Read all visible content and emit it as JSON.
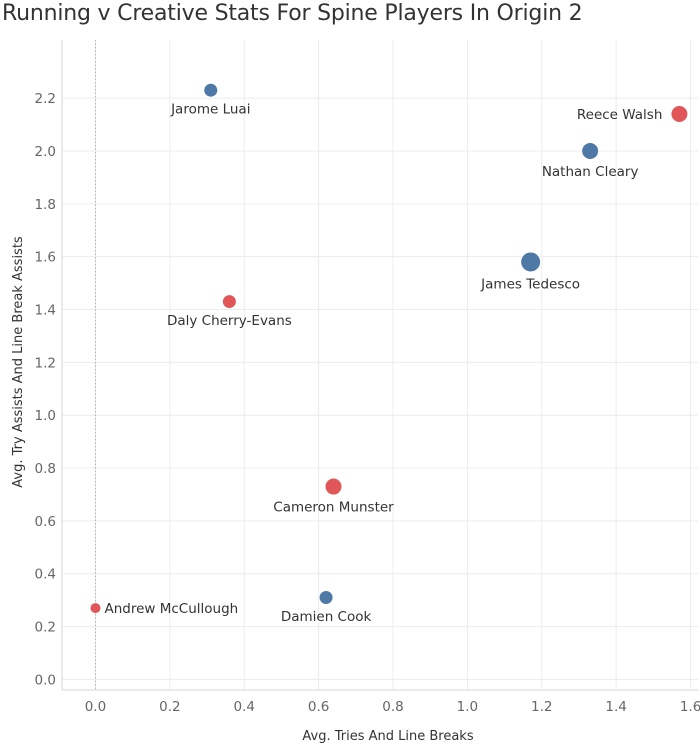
{
  "chart_data": {
    "type": "scatter",
    "title": "Running v Creative Stats For Spine Players In Origin 2",
    "xlabel": "Avg. Tries And Line Breaks",
    "ylabel": "Avg. Try Assists And Line Break Assists",
    "xlim": [
      -0.09,
      1.62
    ],
    "ylim": [
      -0.04,
      2.42
    ],
    "xticks": [
      0.0,
      0.2,
      0.4,
      0.6,
      0.8,
      1.0,
      1.2,
      1.4,
      1.6
    ],
    "yticks": [
      0.0,
      0.2,
      0.4,
      0.6,
      0.8,
      1.0,
      1.2,
      1.4,
      1.6,
      1.8,
      2.0,
      2.2
    ],
    "xtick_labels": [
      "0.0",
      "0.2",
      "0.4",
      "0.6",
      "0.8",
      "1.0",
      "1.2",
      "1.4",
      "1.6"
    ],
    "ytick_labels": [
      "0.0",
      "0.2",
      "0.4",
      "0.6",
      "0.8",
      "1.0",
      "1.2",
      "1.4",
      "1.6",
      "1.8",
      "2.0",
      "2.2"
    ],
    "grid": true,
    "legend": "none",
    "colors": {
      "blue": "#4e79a7",
      "red": "#e15759"
    },
    "points": [
      {
        "label": "Jarome Luai",
        "x": 0.31,
        "y": 2.23,
        "color": "blue",
        "size": "small",
        "label_pos": "below"
      },
      {
        "label": "Reece Walsh",
        "x": 1.57,
        "y": 2.14,
        "color": "red",
        "size": "medium",
        "label_pos": "left"
      },
      {
        "label": "Nathan Cleary",
        "x": 1.33,
        "y": 2.0,
        "color": "blue",
        "size": "medium",
        "label_pos": "below"
      },
      {
        "label": "James Tedesco",
        "x": 1.17,
        "y": 1.58,
        "color": "blue",
        "size": "large",
        "label_pos": "below"
      },
      {
        "label": "Daly Cherry-Evans",
        "x": 0.36,
        "y": 1.43,
        "color": "red",
        "size": "small",
        "label_pos": "below"
      },
      {
        "label": "Cameron Munster",
        "x": 0.64,
        "y": 0.73,
        "color": "red",
        "size": "medium",
        "label_pos": "below"
      },
      {
        "label": "Andrew McCullough",
        "x": 0.0,
        "y": 0.27,
        "color": "red",
        "size": "xsmall",
        "label_pos": "right"
      },
      {
        "label": "Damien Cook",
        "x": 0.62,
        "y": 0.31,
        "color": "blue",
        "size": "small",
        "label_pos": "below"
      }
    ]
  }
}
